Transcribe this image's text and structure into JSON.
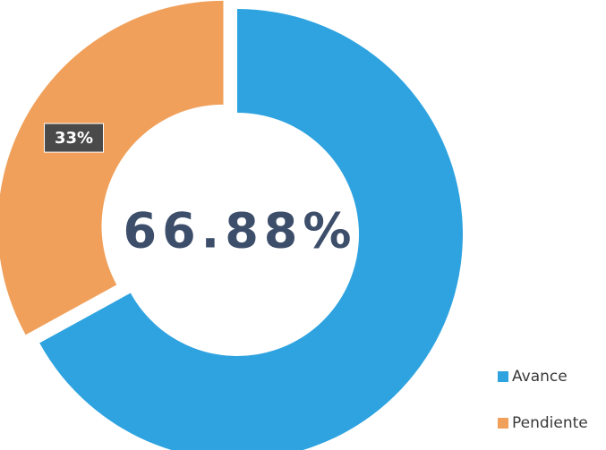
{
  "chart_data": {
    "type": "donut",
    "categories": [
      "Avance",
      "Pendiente"
    ],
    "values": [
      67,
      33
    ],
    "value_labels": [
      null,
      "33%"
    ],
    "colors": [
      "#2ea3e0",
      "#f0a05a"
    ],
    "center_label": "66.88%",
    "legend": "bottom-right"
  }
}
